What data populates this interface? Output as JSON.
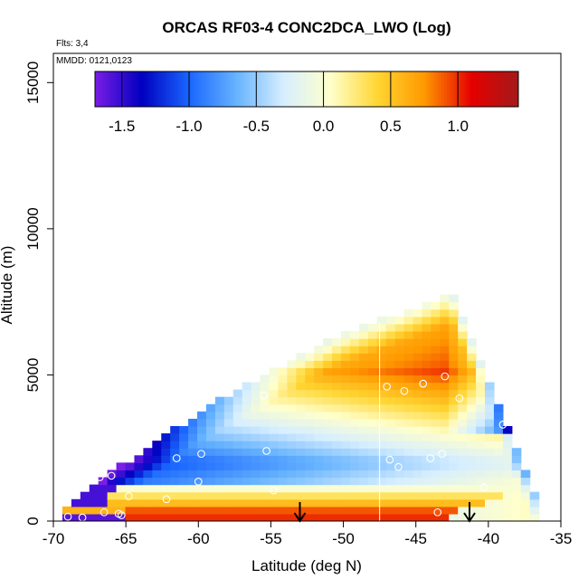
{
  "chart_data": {
    "type": "heatmap",
    "title": "ORCAS RF03-4 CONC2DCA_LWO (Log)",
    "annotations": [
      "Flts: 3,4",
      "MMDD: 0121,0123"
    ],
    "xlabel": "Latitude (deg N)",
    "ylabel": "Altitude (m)",
    "xlim": [
      -70,
      -35
    ],
    "ylim": [
      0,
      16000
    ],
    "x_ticks": [
      -70,
      -65,
      -60,
      -55,
      -50,
      -45,
      -40,
      -35
    ],
    "x_tick_labels": [
      "-70",
      "-65",
      "-60",
      "-55",
      "-50",
      "-45",
      "-40",
      "-35"
    ],
    "y_ticks": [
      0,
      5000,
      10000,
      15000
    ],
    "y_tick_labels": [
      "0",
      "5000",
      "10000",
      "15000"
    ],
    "colorbar": {
      "range": [
        -1.7,
        1.45
      ],
      "ticks": [
        -1.5,
        -1.0,
        -0.5,
        0.0,
        0.5,
        1.0
      ],
      "tick_labels": [
        "-1.5",
        "-1.0",
        "-0.5",
        "0.0",
        "0.5",
        "1.0"
      ],
      "colors": [
        "#7a1de6",
        "#0000c0",
        "#1a66ff",
        "#66b3ff",
        "#d6eeff",
        "#ffffcc",
        "#ffd633",
        "#ff9900",
        "#e60000",
        "#a31a1a"
      ]
    },
    "field_bounds": [
      {
        "lat": -69.2,
        "top": 400
      },
      {
        "lat": -67.0,
        "top": 1200
      },
      {
        "lat": -64.0,
        "top": 2200
      },
      {
        "lat": -60.0,
        "top": 3600
      },
      {
        "lat": -55.0,
        "top": 5000
      },
      {
        "lat": -50.0,
        "top": 6300
      },
      {
        "lat": -45.0,
        "top": 7200
      },
      {
        "lat": -42.5,
        "top": 7700
      },
      {
        "lat": -39.0,
        "top": 3500
      },
      {
        "lat": -36.8,
        "top": 800
      }
    ],
    "bands": [
      {
        "alt": [
          0,
          200
        ],
        "lat": [
          -69.2,
          -43.0
        ],
        "value": 1.0
      },
      {
        "alt": [
          200,
          450
        ],
        "lat": [
          -69.2,
          -42.0
        ],
        "value": 0.9
      },
      {
        "alt": [
          450,
          700
        ],
        "lat": [
          -66.5,
          -40.5
        ],
        "value": 0.55
      },
      {
        "alt": [
          700,
          950
        ],
        "lat": [
          -66.0,
          -39.0
        ],
        "value": 0.3
      },
      {
        "alt": [
          950,
          1200
        ],
        "lat": [
          -65.5,
          -38.0
        ],
        "value": 0.0
      }
    ],
    "series": [
      {
        "name": "",
        "points": [
          {
            "lat": -69.0,
            "alt": 150
          },
          {
            "lat": -68.0,
            "alt": 120
          },
          {
            "lat": -66.5,
            "alt": 300
          },
          {
            "lat": -65.5,
            "alt": 250
          },
          {
            "lat": -64.8,
            "alt": 850
          },
          {
            "lat": -62.2,
            "alt": 750
          },
          {
            "lat": -60.0,
            "alt": 1350
          },
          {
            "lat": -66.8,
            "alt": 1500
          },
          {
            "lat": -66.0,
            "alt": 1550
          },
          {
            "lat": -61.5,
            "alt": 2150
          },
          {
            "lat": -59.8,
            "alt": 2300
          },
          {
            "lat": -55.3,
            "alt": 2400
          },
          {
            "lat": -54.8,
            "alt": 1050
          },
          {
            "lat": -63.2,
            "alt": 3150
          },
          {
            "lat": -60.6,
            "alt": 3700
          },
          {
            "lat": -55.5,
            "alt": 4300
          },
          {
            "lat": -47.0,
            "alt": 4600
          },
          {
            "lat": -45.8,
            "alt": 4450
          },
          {
            "lat": -44.5,
            "alt": 4700
          },
          {
            "lat": -43.0,
            "alt": 4950
          },
          {
            "lat": -42.0,
            "alt": 4200
          },
          {
            "lat": -46.8,
            "alt": 2100
          },
          {
            "lat": -46.2,
            "alt": 1850
          },
          {
            "lat": -44.0,
            "alt": 2150
          },
          {
            "lat": -43.2,
            "alt": 2300
          },
          {
            "lat": -39.0,
            "alt": 3300
          },
          {
            "lat": -40.3,
            "alt": 1150
          },
          {
            "lat": -43.5,
            "alt": 300
          },
          {
            "lat": -65.3,
            "alt": 200
          }
        ]
      }
    ],
    "arrows": [
      {
        "lat": -53.0,
        "alt_from": 650,
        "alt_to": 0
      },
      {
        "lat": -41.3,
        "alt_from": 650,
        "alt_to": 0
      }
    ],
    "grid": false
  }
}
